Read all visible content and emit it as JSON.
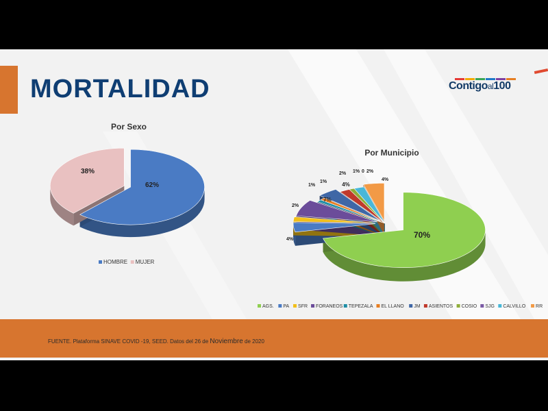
{
  "title": "MORTALIDAD",
  "logo": {
    "part1": "Contigo",
    "part2": "al",
    "part3": "100"
  },
  "colors": {
    "accent": "#d7752f",
    "title": "#0f3e73",
    "logo_stripes": [
      "#e53935",
      "#f2a900",
      "#3aa655",
      "#1f78c8",
      "#7e3fa0",
      "#e67e22"
    ]
  },
  "footer": {
    "text": "FUENTE. Plataforma SINAVE COVID -19, SEED. Datos del 26 de",
    "text_big": "Noviembre",
    "text_end": "de 2020"
  },
  "chart_data": [
    {
      "type": "pie",
      "title": "Por Sexo",
      "categories": [
        "HOMBRE",
        "MUJER"
      ],
      "values": [
        62,
        38
      ],
      "labels": [
        "62%",
        "38%"
      ],
      "colors": [
        "#4a7bc4",
        "#e9c1c1"
      ],
      "legend": "bottom"
    },
    {
      "type": "pie",
      "title": "Por Municipio",
      "categories": [
        "AGS.",
        "PA",
        "SFR",
        "FORANEOS",
        "TEPEZALA",
        "EL LLANO",
        "JM",
        "ASIENTOS",
        "COSIO",
        "SJG",
        "CALVILLO",
        "RR"
      ],
      "values": [
        70,
        4,
        2,
        7,
        1,
        1,
        4,
        2,
        1,
        0,
        2,
        4
      ],
      "labels": [
        "70%",
        "4%",
        "2%",
        "7%",
        "1%",
        "1%",
        "4%",
        "2%",
        "1%",
        "0",
        "2%",
        "4%"
      ],
      "colors": [
        "#8fcf50",
        "#4a7bc4",
        "#f2bf1a",
        "#6b4c9a",
        "#1f8ea6",
        "#e67e22",
        "#3f67a6",
        "#c0392b",
        "#8fae3a",
        "#7a5aa5",
        "#48b7d8",
        "#f29a46"
      ],
      "legend": "bottom"
    }
  ]
}
